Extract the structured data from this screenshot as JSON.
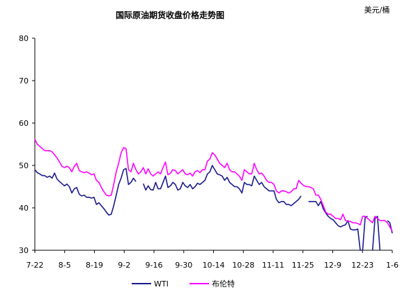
{
  "chart_data": {
    "type": "line",
    "title": "国际原油期货收盘价格走势图",
    "unit_label": "美元/桶",
    "ylim": [
      30,
      80
    ],
    "y_ticks": [
      30,
      40,
      50,
      60,
      70,
      80
    ],
    "x_ticks": [
      "7-22",
      "8-5",
      "8-19",
      "9-2",
      "9-16",
      "9-30",
      "10-14",
      "10-28",
      "11-11",
      "11-25",
      "12-9",
      "12-23",
      "1-6"
    ],
    "grid": false,
    "legend_position": "bottom",
    "colors": {
      "WTI": "#1a1a8c",
      "布伦特": "#ff00ff"
    },
    "series": [
      {
        "name": "WTI",
        "values": [
          [
            0,
            49.0
          ],
          [
            1,
            48.3
          ],
          [
            2,
            48.0
          ],
          [
            3,
            47.6
          ],
          [
            4,
            47.6
          ],
          [
            5,
            47.2
          ],
          [
            6,
            47.5
          ],
          [
            7,
            47.0
          ],
          [
            8,
            48.2
          ],
          [
            9,
            46.8
          ],
          [
            10,
            46.2
          ],
          [
            11,
            45.7
          ],
          [
            12,
            45.2
          ],
          [
            13,
            45.6
          ],
          [
            14,
            45.0
          ],
          [
            15,
            43.5
          ],
          [
            16,
            44.5
          ],
          [
            17,
            44.8
          ],
          [
            18,
            43.2
          ],
          [
            19,
            42.8
          ],
          [
            20,
            43.0
          ],
          [
            21,
            42.5
          ],
          [
            22,
            42.5
          ],
          [
            23,
            42.3
          ],
          [
            24,
            42.5
          ],
          [
            25,
            40.8
          ],
          [
            26,
            41.2
          ],
          [
            27,
            40.5
          ],
          [
            28,
            39.8
          ],
          [
            29,
            39.0
          ],
          [
            30,
            38.3
          ],
          [
            31,
            38.5
          ],
          [
            32,
            40.5
          ],
          [
            33,
            43.0
          ],
          [
            34,
            45.5
          ],
          [
            35,
            47.0
          ],
          [
            36,
            49.0
          ],
          [
            37,
            49.3
          ],
          [
            38,
            45.5
          ],
          [
            39,
            46.0
          ],
          [
            40,
            47.0
          ],
          [
            41,
            46.2
          ],
          [
            44,
            45.7
          ],
          [
            45,
            44.2
          ],
          [
            46,
            45.2
          ],
          [
            47,
            44.3
          ],
          [
            48,
            44.2
          ],
          [
            49,
            46.0
          ],
          [
            50,
            44.5
          ],
          [
            51,
            44.5
          ],
          [
            52,
            46.0
          ],
          [
            53,
            47.5
          ],
          [
            54,
            44.8
          ],
          [
            55,
            45.2
          ],
          [
            56,
            46.0
          ],
          [
            57,
            45.5
          ],
          [
            58,
            44.2
          ],
          [
            59,
            44.5
          ],
          [
            60,
            46.0
          ],
          [
            61,
            45.2
          ],
          [
            62,
            44.8
          ],
          [
            63,
            45.5
          ],
          [
            64,
            44.5
          ],
          [
            65,
            45.0
          ],
          [
            66,
            45.8
          ],
          [
            67,
            45.5
          ],
          [
            68,
            46.0
          ],
          [
            69,
            46.5
          ],
          [
            70,
            48.0
          ],
          [
            71,
            48.5
          ],
          [
            72,
            50.0
          ],
          [
            73,
            49.0
          ],
          [
            74,
            48.0
          ],
          [
            75,
            47.8
          ],
          [
            76,
            47.5
          ],
          [
            77,
            46.5
          ],
          [
            78,
            47.2
          ],
          [
            79,
            46.0
          ],
          [
            80,
            45.5
          ],
          [
            81,
            45.0
          ],
          [
            82,
            45.0
          ],
          [
            83,
            44.5
          ],
          [
            84,
            43.5
          ],
          [
            85,
            46.0
          ],
          [
            86,
            45.5
          ],
          [
            87,
            45.5
          ],
          [
            88,
            45.2
          ],
          [
            89,
            47.5
          ],
          [
            90,
            46.5
          ],
          [
            91,
            45.5
          ],
          [
            92,
            46.0
          ],
          [
            93,
            45.0
          ],
          [
            94,
            44.5
          ],
          [
            95,
            44.0
          ],
          [
            96,
            44.0
          ],
          [
            97,
            44.0
          ],
          [
            98,
            42.0
          ],
          [
            99,
            41.2
          ],
          [
            100,
            41.5
          ],
          [
            101,
            41.5
          ],
          [
            102,
            40.8
          ],
          [
            103,
            40.8
          ],
          [
            104,
            40.5
          ],
          [
            105,
            41.0
          ],
          [
            106,
            41.5
          ],
          [
            107,
            42.0
          ],
          [
            108,
            42.8
          ],
          [
            111,
            41.5
          ],
          [
            112,
            41.5
          ],
          [
            113,
            41.5
          ],
          [
            114,
            41.5
          ],
          [
            115,
            40.5
          ],
          [
            116,
            41.5
          ],
          [
            117,
            39.8
          ],
          [
            118,
            38.8
          ],
          [
            119,
            38.0
          ],
          [
            120,
            37.5
          ],
          [
            121,
            37.2
          ],
          [
            122,
            36.5
          ],
          [
            123,
            35.8
          ],
          [
            124,
            35.5
          ],
          [
            125,
            35.8
          ],
          [
            126,
            36.0
          ],
          [
            127,
            37.0
          ],
          [
            128,
            35.0
          ],
          [
            129,
            34.8
          ],
          [
            130,
            34.8
          ],
          [
            131,
            35.0
          ],
          [
            132,
            30.0
          ],
          [
            133,
            30.0
          ],
          [
            134,
            37.8
          ],
          [
            135,
            38.0
          ],
          [
            137,
            30.0
          ],
          [
            138,
            37.5
          ],
          [
            139,
            38.0
          ],
          [
            140,
            30.0
          ],
          [
            143,
            37.0
          ],
          [
            144,
            36.5
          ],
          [
            145,
            34.0
          ]
        ]
      },
      {
        "name": "布伦特",
        "values": [
          [
            0,
            56.2
          ],
          [
            1,
            55.0
          ],
          [
            2,
            54.5
          ],
          [
            3,
            54.0
          ],
          [
            4,
            53.5
          ],
          [
            5,
            53.5
          ],
          [
            6,
            53.5
          ],
          [
            7,
            53.2
          ],
          [
            8,
            52.5
          ],
          [
            9,
            51.8
          ],
          [
            10,
            50.8
          ],
          [
            11,
            49.8
          ],
          [
            12,
            49.5
          ],
          [
            13,
            49.8
          ],
          [
            14,
            49.5
          ],
          [
            15,
            48.5
          ],
          [
            16,
            49.8
          ],
          [
            17,
            50.5
          ],
          [
            18,
            48.8
          ],
          [
            19,
            48.5
          ],
          [
            20,
            48.3
          ],
          [
            21,
            48.5
          ],
          [
            22,
            48.2
          ],
          [
            23,
            47.8
          ],
          [
            24,
            48.0
          ],
          [
            25,
            46.5
          ],
          [
            26,
            46.0
          ],
          [
            27,
            44.8
          ],
          [
            28,
            43.8
          ],
          [
            29,
            43.0
          ],
          [
            30,
            42.8
          ],
          [
            31,
            43.0
          ],
          [
            32,
            45.5
          ],
          [
            33,
            48.5
          ],
          [
            34,
            50.5
          ],
          [
            35,
            53.0
          ],
          [
            36,
            54.2
          ],
          [
            37,
            54.0
          ],
          [
            38,
            49.0
          ],
          [
            39,
            48.5
          ],
          [
            40,
            50.5
          ],
          [
            41,
            49.0
          ],
          [
            42,
            48.0
          ],
          [
            43,
            48.5
          ],
          [
            44,
            49.5
          ],
          [
            45,
            48.0
          ],
          [
            46,
            49.2
          ],
          [
            47,
            48.0
          ],
          [
            48,
            47.5
          ],
          [
            49,
            48.0
          ],
          [
            50,
            48.5
          ],
          [
            51,
            48.0
          ],
          [
            52,
            49.5
          ],
          [
            53,
            50.8
          ],
          [
            54,
            47.8
          ],
          [
            55,
            48.2
          ],
          [
            56,
            49.0
          ],
          [
            57,
            48.8
          ],
          [
            58,
            48.0
          ],
          [
            59,
            48.5
          ],
          [
            60,
            49.0
          ],
          [
            61,
            48.0
          ],
          [
            62,
            47.8
          ],
          [
            63,
            48.2
          ],
          [
            64,
            47.5
          ],
          [
            65,
            48.5
          ],
          [
            66,
            48.8
          ],
          [
            67,
            48.3
          ],
          [
            68,
            49.0
          ],
          [
            69,
            49.0
          ],
          [
            70,
            51.0
          ],
          [
            71,
            51.5
          ],
          [
            72,
            53.0
          ],
          [
            73,
            52.5
          ],
          [
            74,
            51.5
          ],
          [
            75,
            50.5
          ],
          [
            76,
            50.0
          ],
          [
            77,
            49.5
          ],
          [
            78,
            50.5
          ],
          [
            79,
            49.0
          ],
          [
            80,
            48.5
          ],
          [
            81,
            48.5
          ],
          [
            82,
            48.0
          ],
          [
            83,
            47.5
          ],
          [
            84,
            46.5
          ],
          [
            85,
            49.0
          ],
          [
            86,
            48.5
          ],
          [
            87,
            48.0
          ],
          [
            88,
            48.0
          ],
          [
            89,
            50.5
          ],
          [
            90,
            49.0
          ],
          [
            91,
            48.0
          ],
          [
            92,
            48.2
          ],
          [
            93,
            47.5
          ],
          [
            94,
            46.5
          ],
          [
            95,
            46.0
          ],
          [
            96,
            46.0
          ],
          [
            97,
            45.5
          ],
          [
            98,
            44.0
          ],
          [
            99,
            43.5
          ],
          [
            100,
            44.0
          ],
          [
            101,
            44.0
          ],
          [
            102,
            43.8
          ],
          [
            103,
            43.5
          ],
          [
            104,
            43.8
          ],
          [
            105,
            44.5
          ],
          [
            106,
            44.5
          ],
          [
            107,
            46.5
          ],
          [
            108,
            45.8
          ],
          [
            109,
            45.3
          ],
          [
            110,
            45.0
          ],
          [
            111,
            45.0
          ],
          [
            112,
            44.8
          ],
          [
            113,
            44.5
          ],
          [
            114,
            43.0
          ],
          [
            115,
            43.0
          ],
          [
            116,
            42.0
          ],
          [
            117,
            40.5
          ],
          [
            118,
            39.0
          ],
          [
            119,
            38.5
          ],
          [
            120,
            38.5
          ],
          [
            121,
            38.0
          ],
          [
            122,
            37.5
          ],
          [
            123,
            37.5
          ],
          [
            124,
            37.2
          ],
          [
            125,
            38.5
          ],
          [
            126,
            37.0
          ],
          [
            127,
            36.8
          ],
          [
            128,
            36.8
          ],
          [
            129,
            36.5
          ],
          [
            130,
            36.5
          ],
          [
            131,
            36.3
          ],
          [
            132,
            36.0
          ],
          [
            133,
            38.0
          ],
          [
            134,
            38.0
          ],
          [
            135,
            37.5
          ],
          [
            136,
            37.0
          ],
          [
            137,
            36.5
          ],
          [
            138,
            38.0
          ],
          [
            139,
            37.5
          ],
          [
            140,
            37.0
          ],
          [
            141,
            37.0
          ],
          [
            142,
            37.0
          ],
          [
            143,
            36.5
          ],
          [
            144,
            35.5
          ],
          [
            145,
            34.5
          ]
        ]
      }
    ]
  }
}
